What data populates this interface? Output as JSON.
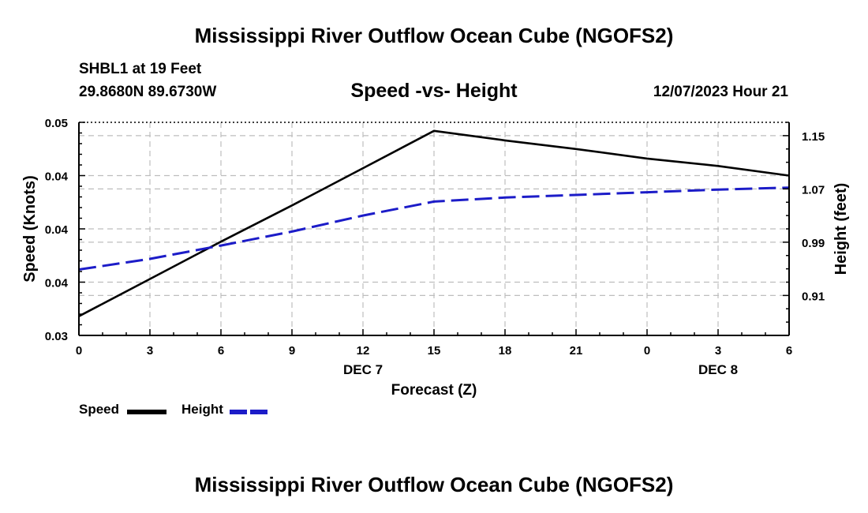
{
  "page": {
    "title": "Mississippi River Outflow Ocean Cube (NGOFS2)",
    "title_repeat": "Mississippi River Outflow Ocean Cube (NGOFS2)",
    "station_label": "SHBL1 at 19 Feet",
    "coordinates": "29.8680N  89.6730W",
    "subtitle": "Speed -vs- Height",
    "datetime": "12/07/2023 Hour 21"
  },
  "chart_data": {
    "type": "line",
    "title": "Speed -vs- Height",
    "xlabel": "Forecast (Z)",
    "ylabel": "Speed (Knots)",
    "y2label": "Height (feet)",
    "x": [
      0,
      3,
      6,
      9,
      12,
      15,
      18,
      21,
      24,
      27,
      30
    ],
    "xlim": [
      0,
      30
    ],
    "x_tick_labels": [
      "0",
      "3",
      "6",
      "9",
      "12",
      "15",
      "18",
      "21",
      "0",
      "3",
      "6"
    ],
    "date_labels": [
      {
        "x": 12,
        "label": "DEC 7"
      },
      {
        "x": 27,
        "label": "DEC 8"
      }
    ],
    "ylim": [
      0.03,
      0.05
    ],
    "y_ticks": [
      0.03,
      0.035,
      0.04,
      0.045,
      0.05
    ],
    "y_tick_labels": [
      "0.03",
      "0.04",
      "0.04",
      "0.04",
      "0.05"
    ],
    "y2lim": [
      0.85,
      1.17
    ],
    "y2_ticks": [
      0.91,
      0.99,
      1.07,
      1.15
    ],
    "y2_tick_labels": [
      "0.91",
      "0.99",
      "1.07",
      "1.15"
    ],
    "grid": true,
    "series": [
      {
        "name": "Speed",
        "axis": "left",
        "color": "#000000",
        "dash": "solid",
        "values": [
          0.0318,
          0.0353,
          0.0388,
          0.0422,
          0.0457,
          0.0492,
          0.0483,
          0.0475,
          0.0466,
          0.0459,
          0.045
        ]
      },
      {
        "name": "Height",
        "axis": "right",
        "color": "#1c1cc8",
        "dash": "dashed",
        "values": [
          0.949,
          0.965,
          0.985,
          1.006,
          1.03,
          1.051,
          1.057,
          1.061,
          1.065,
          1.069,
          1.072
        ]
      }
    ],
    "legend": {
      "position": "bottom-left",
      "items": [
        {
          "label": "Speed",
          "color": "#000000",
          "dash": "solid"
        },
        {
          "label": "Height",
          "color": "#1c1cc8",
          "dash": "dashed"
        }
      ]
    }
  }
}
